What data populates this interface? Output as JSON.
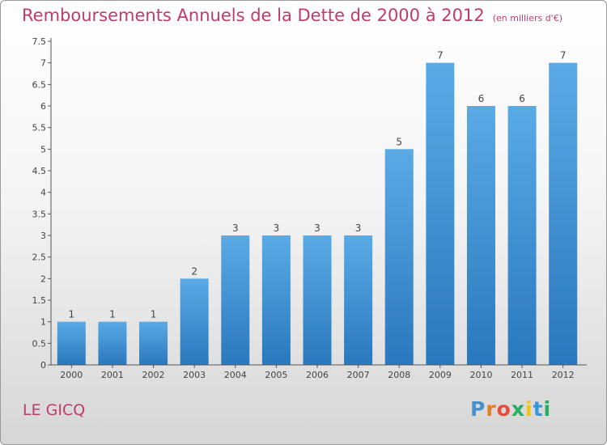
{
  "header": {
    "title": "Remboursements Annuels de la Dette de 2000 à 2012",
    "unit": "(en milliers d'€)"
  },
  "commune": "LE GICQ",
  "logo": {
    "letters": [
      "P",
      "r",
      "o",
      "x",
      "i",
      "t",
      "i"
    ]
  },
  "colors": {
    "bar_top": "#5aaae6",
    "bar_bottom": "#2a78bd",
    "title": "#c03a6e"
  },
  "chart_data": {
    "type": "bar",
    "title": "Remboursements Annuels de la Dette de 2000 à 2012",
    "xlabel": "",
    "ylabel": "",
    "categories": [
      "2000",
      "2001",
      "2002",
      "2003",
      "2004",
      "2005",
      "2006",
      "2007",
      "2008",
      "2009",
      "2010",
      "2011",
      "2012"
    ],
    "values": [
      1,
      1,
      1,
      2,
      3,
      3,
      3,
      3,
      5,
      7,
      6,
      6,
      7
    ],
    "data_labels": [
      "1",
      "1",
      "1",
      "2",
      "3",
      "3",
      "3",
      "3",
      "5",
      "7",
      "6",
      "6",
      "7"
    ],
    "ylim": [
      0,
      7.5
    ],
    "yticks": [
      0,
      0.5,
      1,
      1.5,
      2,
      2.5,
      3,
      3.5,
      4,
      4.5,
      5,
      5.5,
      6,
      6.5,
      7,
      7.5
    ],
    "ytick_labels": [
      "0",
      "0.5",
      "1",
      "1.5",
      "2",
      "2.5",
      "3",
      "3.5",
      "4",
      "4.5",
      "5",
      "5.5",
      "6",
      "6.5",
      "7",
      "7.5"
    ],
    "grid": false,
    "legend": "none"
  }
}
